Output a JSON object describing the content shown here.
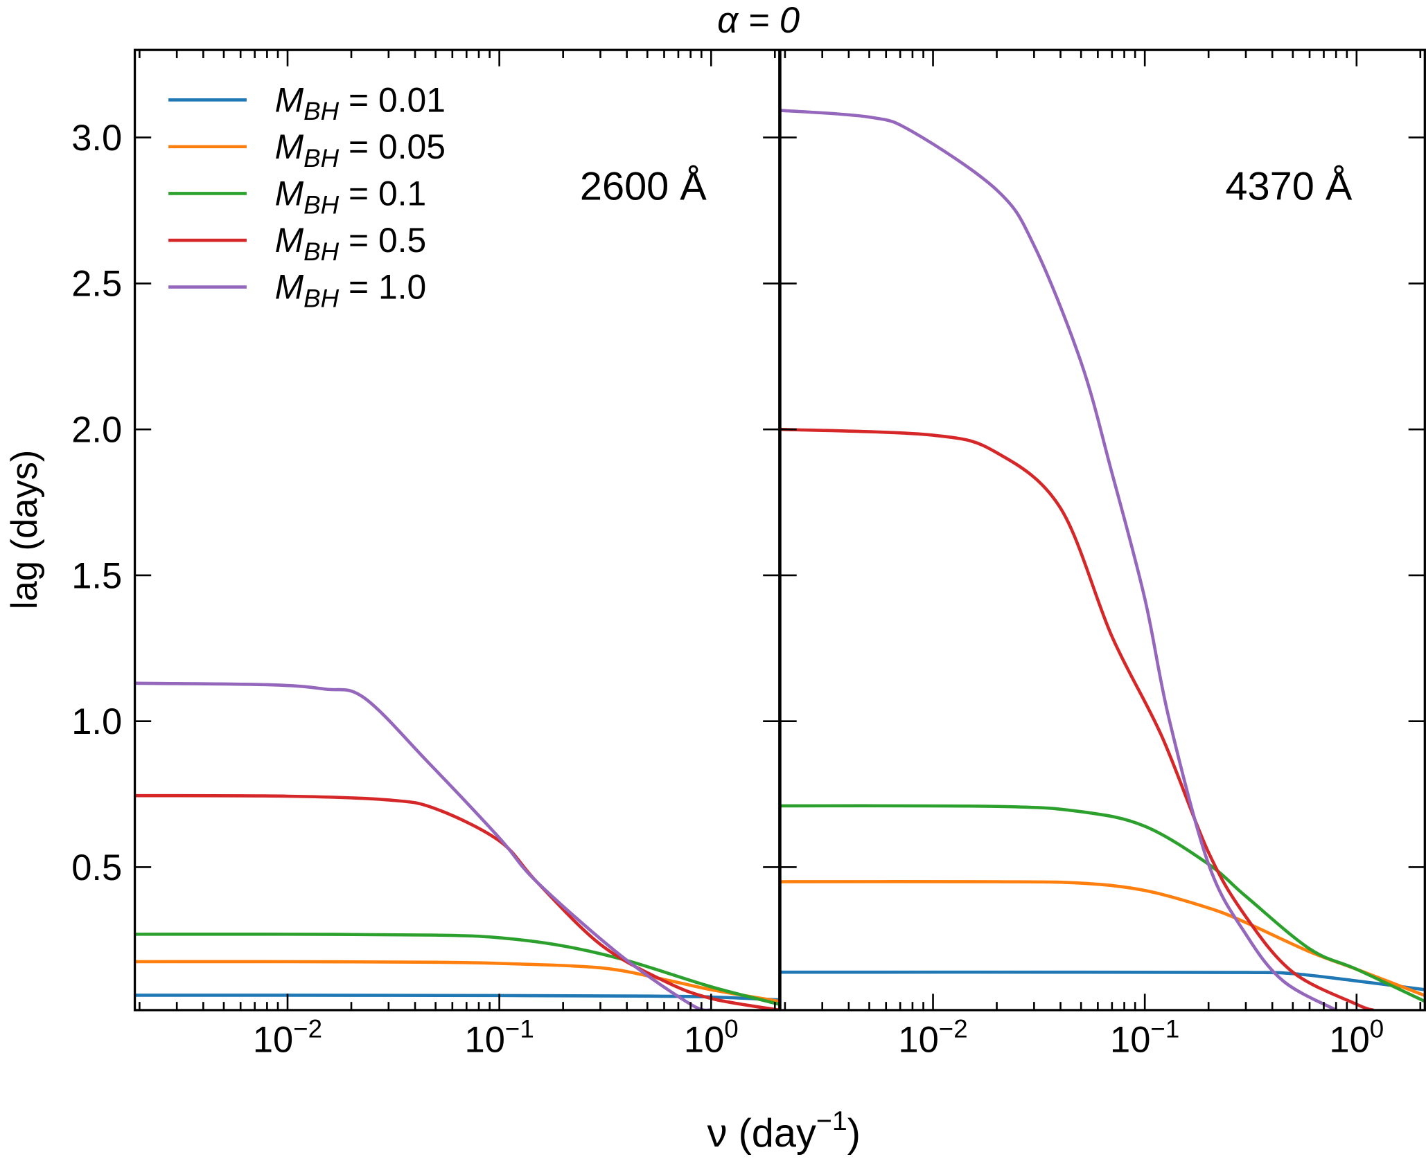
{
  "chart_data": {
    "type": "line",
    "title": "α = 0",
    "xlabel": "ν (day",
    "xlabel_exponent": "−1",
    "xlabel_close": ")",
    "ylabel": "lag (days)",
    "xscale": "log",
    "xlim": [
      0.0019,
      2.1
    ],
    "ylim": [
      0.01,
      3.3
    ],
    "x_ticks": [
      {
        "base": "10",
        "exp": "−2",
        "value": 0.01
      },
      {
        "base": "10",
        "exp": "−1",
        "value": 0.1
      },
      {
        "base": "10",
        "exp": "0",
        "value": 1
      }
    ],
    "y_ticks": [
      "0.5",
      "1.0",
      "1.5",
      "2.0",
      "2.5",
      "3.0"
    ],
    "grid": false,
    "legend_placement": "top-left",
    "colors": [
      "#1f77b4",
      "#ff7f0e",
      "#2ca02c",
      "#d62728",
      "#9467bd"
    ],
    "legend": [
      {
        "symbol": "M",
        "sub": "BH",
        "value": " = 0.01"
      },
      {
        "symbol": "M",
        "sub": "BH",
        "value": " = 0.05"
      },
      {
        "symbol": "M",
        "sub": "BH",
        "value": " = 0.1"
      },
      {
        "symbol": "M",
        "sub": "BH",
        "value": " = 0.5"
      },
      {
        "symbol": "M",
        "sub": "BH",
        "value": " = 1.0"
      }
    ],
    "panels": [
      {
        "annotation": "2600 Å",
        "series": [
          {
            "points": [
              [
                0.0019,
                0.061
              ],
              [
                0.01,
                0.061
              ],
              [
                0.1,
                0.06
              ],
              [
                0.5,
                0.058
              ],
              [
                1,
                0.055
              ],
              [
                2.1,
                0.045
              ]
            ]
          },
          {
            "points": [
              [
                0.0019,
                0.176
              ],
              [
                0.01,
                0.176
              ],
              [
                0.05,
                0.174
              ],
              [
                0.1,
                0.17
              ],
              [
                0.3,
                0.155
              ],
              [
                0.6,
                0.115
              ],
              [
                1,
                0.08
              ],
              [
                2.1,
                0.04
              ]
            ]
          },
          {
            "points": [
              [
                0.0019,
                0.27
              ],
              [
                0.01,
                0.27
              ],
              [
                0.05,
                0.267
              ],
              [
                0.1,
                0.258
              ],
              [
                0.2,
                0.23
              ],
              [
                0.4,
                0.18
              ],
              [
                1,
                0.09
              ],
              [
                2.1,
                0.03
              ]
            ]
          },
          {
            "points": [
              [
                0.0019,
                0.745
              ],
              [
                0.01,
                0.743
              ],
              [
                0.03,
                0.73
              ],
              [
                0.05,
                0.7
              ],
              [
                0.1,
                0.59
              ],
              [
                0.15,
                0.45
              ],
              [
                0.3,
                0.235
              ],
              [
                0.6,
                0.11
              ],
              [
                1,
                0.05
              ],
              [
                2.1,
                0.01
              ]
            ]
          },
          {
            "points": [
              [
                0.0019,
                1.13
              ],
              [
                0.008,
                1.125
              ],
              [
                0.015,
                1.11
              ],
              [
                0.023,
                1.08
              ],
              [
                0.046,
                0.86
              ],
              [
                0.1,
                0.6
              ],
              [
                0.15,
                0.45
              ],
              [
                0.37,
                0.2
              ],
              [
                0.8,
                0.03
              ],
              [
                1.0,
                0.01
              ]
            ]
          }
        ]
      },
      {
        "annotation": "4370 Å",
        "series": [
          {
            "points": [
              [
                0.0019,
                0.14
              ],
              [
                0.05,
                0.14
              ],
              [
                0.3,
                0.139
              ],
              [
                0.5,
                0.135
              ],
              [
                1,
                0.11
              ],
              [
                2.1,
                0.08
              ]
            ]
          },
          {
            "points": [
              [
                0.0019,
                0.45
              ],
              [
                0.02,
                0.45
              ],
              [
                0.05,
                0.445
              ],
              [
                0.1,
                0.42
              ],
              [
                0.2,
                0.36
              ],
              [
                0.3,
                0.31
              ],
              [
                0.6,
                0.21
              ],
              [
                1,
                0.15
              ],
              [
                2.1,
                0.06
              ]
            ]
          },
          {
            "points": [
              [
                0.0019,
                0.71
              ],
              [
                0.02,
                0.708
              ],
              [
                0.05,
                0.69
              ],
              [
                0.1,
                0.64
              ],
              [
                0.2,
                0.51
              ],
              [
                0.3,
                0.4
              ],
              [
                0.6,
                0.22
              ],
              [
                1,
                0.15
              ],
              [
                2.1,
                0.04
              ]
            ]
          },
          {
            "points": [
              [
                0.0019,
                2.0
              ],
              [
                0.01,
                1.98
              ],
              [
                0.02,
                1.92
              ],
              [
                0.04,
                1.73
              ],
              [
                0.07,
                1.29
              ],
              [
                0.12,
                0.95
              ],
              [
                0.2,
                0.55
              ],
              [
                0.3,
                0.33
              ],
              [
                0.5,
                0.14
              ],
              [
                1,
                0.03
              ],
              [
                1.2,
                0.01
              ]
            ]
          },
          {
            "points": [
              [
                0.0019,
                3.093
              ],
              [
                0.005,
                3.07
              ],
              [
                0.008,
                3.02
              ],
              [
                0.02,
                2.82
              ],
              [
                0.03,
                2.63
              ],
              [
                0.05,
                2.23
              ],
              [
                0.07,
                1.85
              ],
              [
                0.1,
                1.42
              ],
              [
                0.13,
                1.01
              ],
              [
                0.2,
                0.51
              ],
              [
                0.3,
                0.27
              ],
              [
                0.45,
                0.11
              ],
              [
                0.8,
                0.01
              ]
            ]
          }
        ]
      }
    ]
  }
}
